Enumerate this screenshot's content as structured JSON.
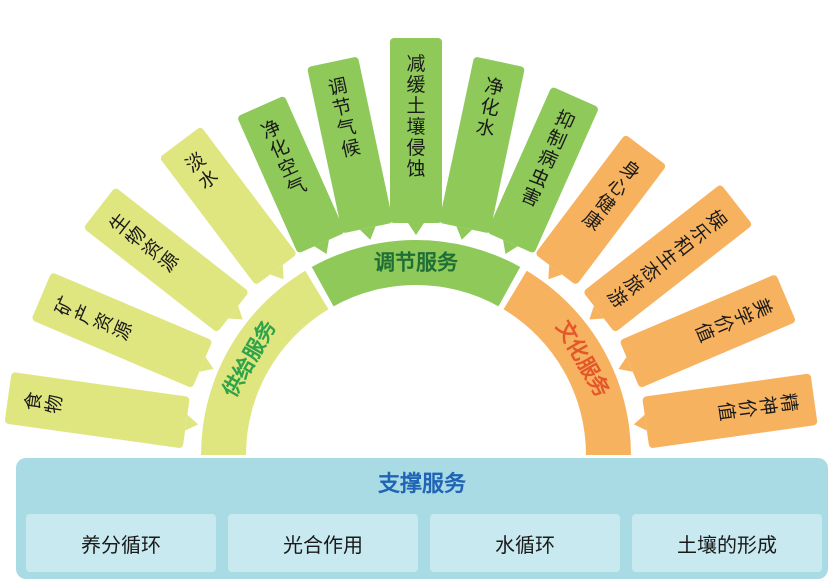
{
  "categories": {
    "supply": "供给服务",
    "regulating": "调节服务",
    "cultural": "文化服务"
  },
  "supply_items": [
    "食物",
    "矿产资源",
    "生物资源",
    "淡水"
  ],
  "regulating_items": [
    "净化空气",
    "调节气候",
    "减缓土壤侵蚀",
    "净化水",
    "抑制病虫害"
  ],
  "cultural_items": [
    "身心健康",
    "娱乐和生态旅游",
    "美学价值",
    "精神价值"
  ],
  "support": {
    "title": "支撑服务",
    "processes": [
      "养分循环",
      "光合作用",
      "水循环",
      "土壤的形成"
    ]
  },
  "colors": {
    "supply_light": "#dfe680",
    "supply_text": "#2fa34a",
    "regulating": "#8fc95a",
    "regulating_text": "#1e6e35",
    "cultural": "#f7b25f",
    "cultural_text": "#e2582a",
    "support_bg": "#a9dbe4",
    "support_cell": "#c8e9ef",
    "support_title": "#1f64b5"
  }
}
